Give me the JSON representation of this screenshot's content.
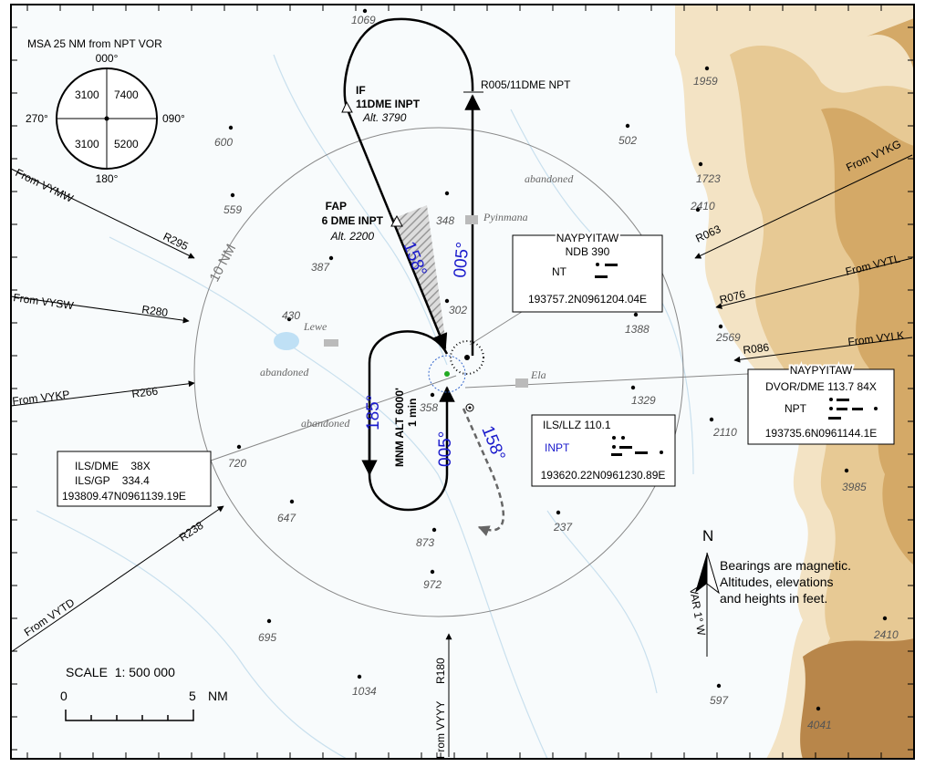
{
  "msa": {
    "title": "MSA 25 NM from NPT VOR",
    "north": "000°",
    "east": "090°",
    "south": "180°",
    "west": "270°",
    "nw": "3100",
    "ne": "7400",
    "sw": "3100",
    "se": "5200"
  },
  "fixes": {
    "if": {
      "name": "IF",
      "dme": "11DME INPT",
      "alt": "Alt. 3790"
    },
    "fap": {
      "name": "FAP",
      "dme": "6 DME INPT",
      "alt": "Alt. 2200"
    },
    "r005": "R005/11DME NPT"
  },
  "tracks": {
    "inbound": "158°",
    "outbound": "005°",
    "hold_out": "185°",
    "hold_in": "005°",
    "missed": "158°"
  },
  "holding": {
    "alt": "MNM ALT 6000'",
    "time": "1 min"
  },
  "range_ring": "10 NM",
  "routes": [
    {
      "from": "From VYMW",
      "radial": "R295"
    },
    {
      "from": "From VYSW",
      "radial": "R280"
    },
    {
      "from": "From VYKP",
      "radial": "R266"
    },
    {
      "from": "From VYTD",
      "radial": "R238"
    },
    {
      "from": "From VYKG",
      "radial": "R063"
    },
    {
      "from": "From VYTL",
      "radial": "R076"
    },
    {
      "from": "From VYLK",
      "radial": "R086"
    },
    {
      "from": "From VYYY",
      "radial": "R180"
    }
  ],
  "navaids": {
    "ndb": {
      "name": "NAYPYITAW",
      "type": "NDB 390",
      "ident": "NT",
      "coord": "193757.2N0961204.04E"
    },
    "dvor": {
      "name": "NAYPYITAW",
      "type": "DVOR/DME 113.7 84X",
      "ident": "NPT",
      "coord": "193735.6N0961144.1E"
    },
    "llz": {
      "type": "ILS/LLZ  110.1",
      "ident": "INPT",
      "coord": "193620.22N0961230.89E"
    },
    "dme": {
      "lines": [
        "ILS/DME    38X",
        "ILS/GP    334.4",
        "193809.47N0961139.19E"
      ]
    }
  },
  "places": {
    "pyinmana": "Pyinmana",
    "lewe": "Lewe",
    "ela": "Ela",
    "abandoned": [
      "abandoned",
      "abandoned",
      "abandoned"
    ]
  },
  "spot_heights": [
    "1069",
    "1959",
    "600",
    "502",
    "1723",
    "2410",
    "559",
    "348",
    "387",
    "302",
    "1388",
    "430",
    "2569",
    "1329",
    "358",
    "2110",
    "720",
    "3985",
    "647",
    "873",
    "237",
    "972",
    "695",
    "1034",
    "597",
    "2410",
    "4041"
  ],
  "scale": {
    "title": "SCALE  1: 500 000",
    "start": "0",
    "end": "5",
    "unit": "NM"
  },
  "notes": [
    "Bearings are magnetic.",
    "Altitudes, elevations",
    "and heights in feet."
  ],
  "north": {
    "label": "N",
    "variation": "VAR 1° W"
  }
}
